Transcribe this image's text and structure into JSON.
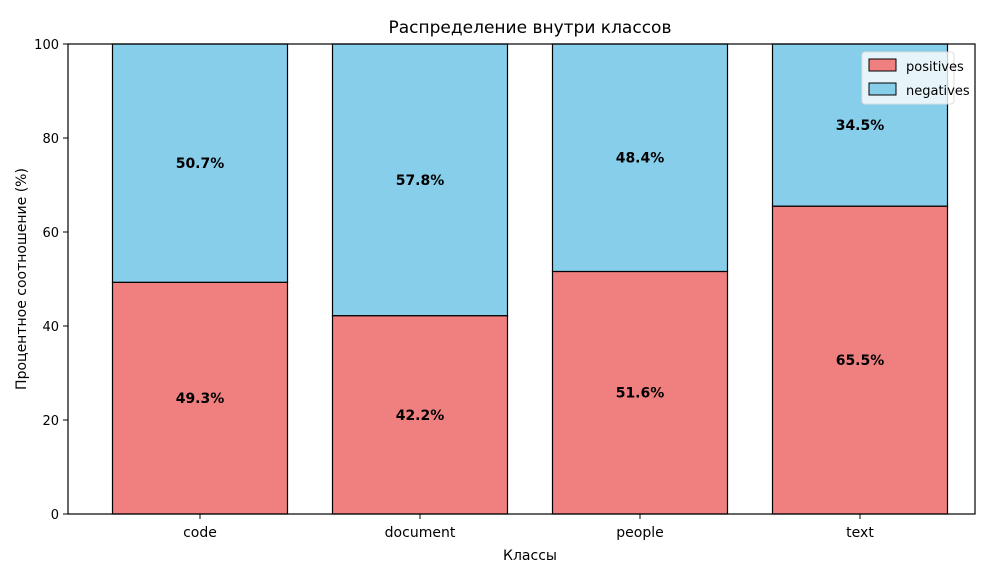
{
  "chart_data": {
    "type": "bar",
    "stacked": true,
    "title": "Распределение внутри классов",
    "xlabel": "Классы",
    "ylabel": "Процентное соотношение (%)",
    "ylim": [
      0,
      100
    ],
    "yticks": [
      "0",
      "20",
      "40",
      "60",
      "80",
      "100"
    ],
    "categories": [
      "code",
      "document",
      "people",
      "text"
    ],
    "series": [
      {
        "name": "positives",
        "color": "#f08080",
        "values": [
          49.3,
          42.2,
          51.6,
          65.5
        ],
        "labels": [
          "49.3%",
          "42.2%",
          "51.6%",
          "65.5%"
        ]
      },
      {
        "name": "negatives",
        "color": "#87ceeb",
        "values": [
          50.7,
          57.8,
          48.4,
          34.5
        ],
        "labels": [
          "50.7%",
          "57.8%",
          "48.4%",
          "34.5%"
        ]
      }
    ],
    "legend": "top-right",
    "grid": false
  }
}
